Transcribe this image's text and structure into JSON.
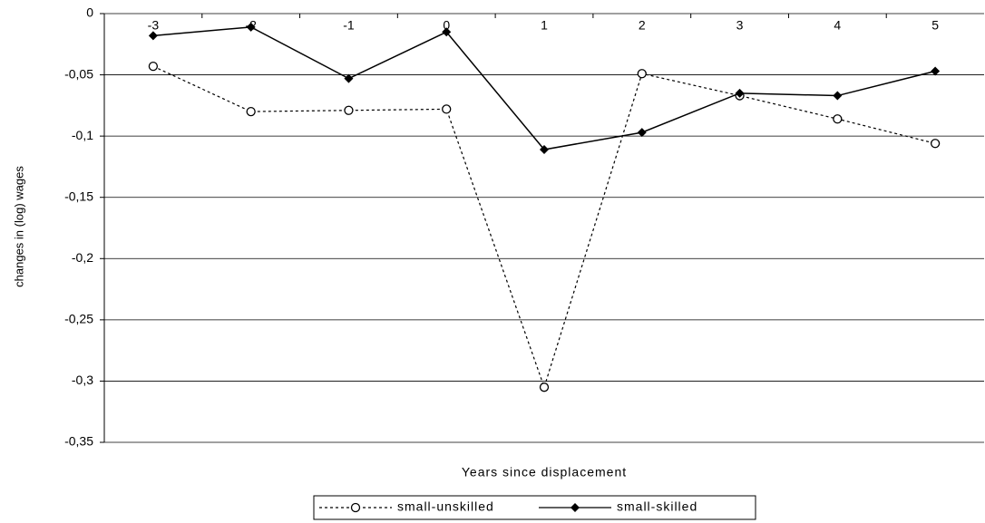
{
  "chart_data": {
    "type": "line",
    "categories": [
      "-3",
      "-2",
      "-1",
      "0",
      "1",
      "2",
      "3",
      "4",
      "5"
    ],
    "series": [
      {
        "name": "small-unskilled",
        "color": "#000000",
        "dash": true,
        "marker": "circle",
        "values": [
          -0.043,
          -0.08,
          -0.079,
          -0.078,
          -0.305,
          -0.049,
          -0.067,
          -0.086,
          -0.106
        ]
      },
      {
        "name": "small-skilled",
        "color": "#000000",
        "dash": false,
        "marker": "diamond",
        "values": [
          -0.018,
          -0.011,
          -0.053,
          -0.015,
          -0.111,
          -0.097,
          -0.065,
          -0.067,
          -0.047
        ]
      }
    ],
    "ylim": [
      -0.35,
      0
    ],
    "yticks": [
      0,
      {
        "value": -0.05,
        "label": "-0,05"
      },
      {
        "value": -0.1,
        "label": "-0,1"
      },
      {
        "value": -0.15,
        "label": "-0,15"
      },
      {
        "value": -0.2,
        "label": "-0,2"
      },
      {
        "value": -0.25,
        "label": "-0,25"
      },
      {
        "value": -0.3,
        "label": "-0,3"
      },
      {
        "value": -0.35,
        "label": "-0,35"
      }
    ],
    "y_label": "changes in (log) wages",
    "x_label": "Years since displacement",
    "grid": true,
    "legend": "bottom"
  }
}
